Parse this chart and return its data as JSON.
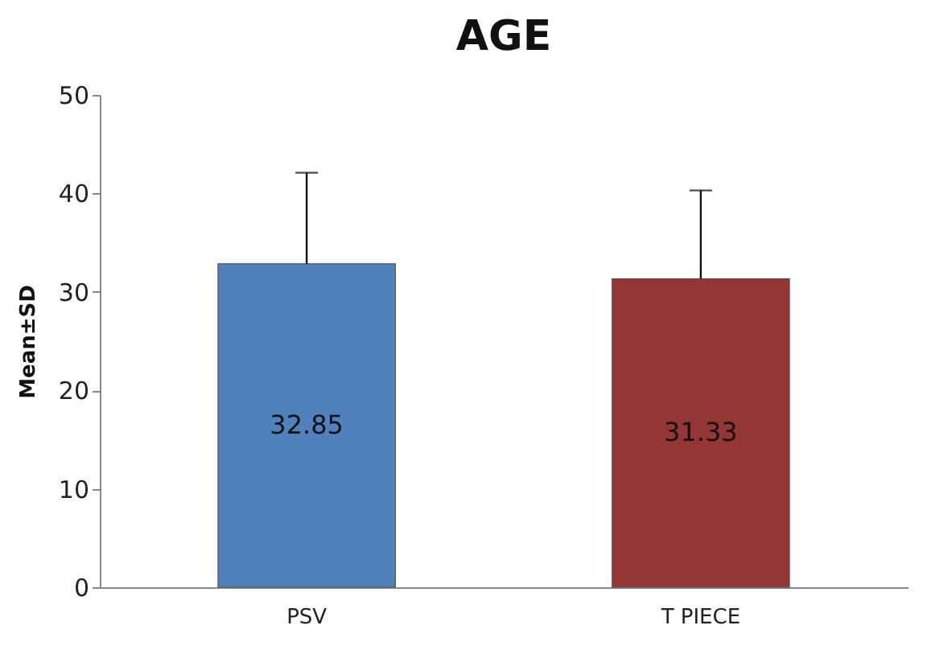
{
  "chart_data": {
    "type": "bar",
    "title": "AGE",
    "ylabel": "Mean±SD",
    "categories": [
      "PSV",
      "T PIECE"
    ],
    "values": [
      32.85,
      31.33
    ],
    "colors": [
      "#4f81bd",
      "#943634"
    ],
    "errors": [
      [
        32.85,
        42.1
      ],
      [
        31.33,
        40.3
      ]
    ],
    "value_labels": [
      "32.85",
      "31.33"
    ],
    "ylim": [
      0,
      50
    ],
    "yticks": [
      0,
      10,
      20,
      30,
      40,
      50
    ],
    "grid": false
  }
}
